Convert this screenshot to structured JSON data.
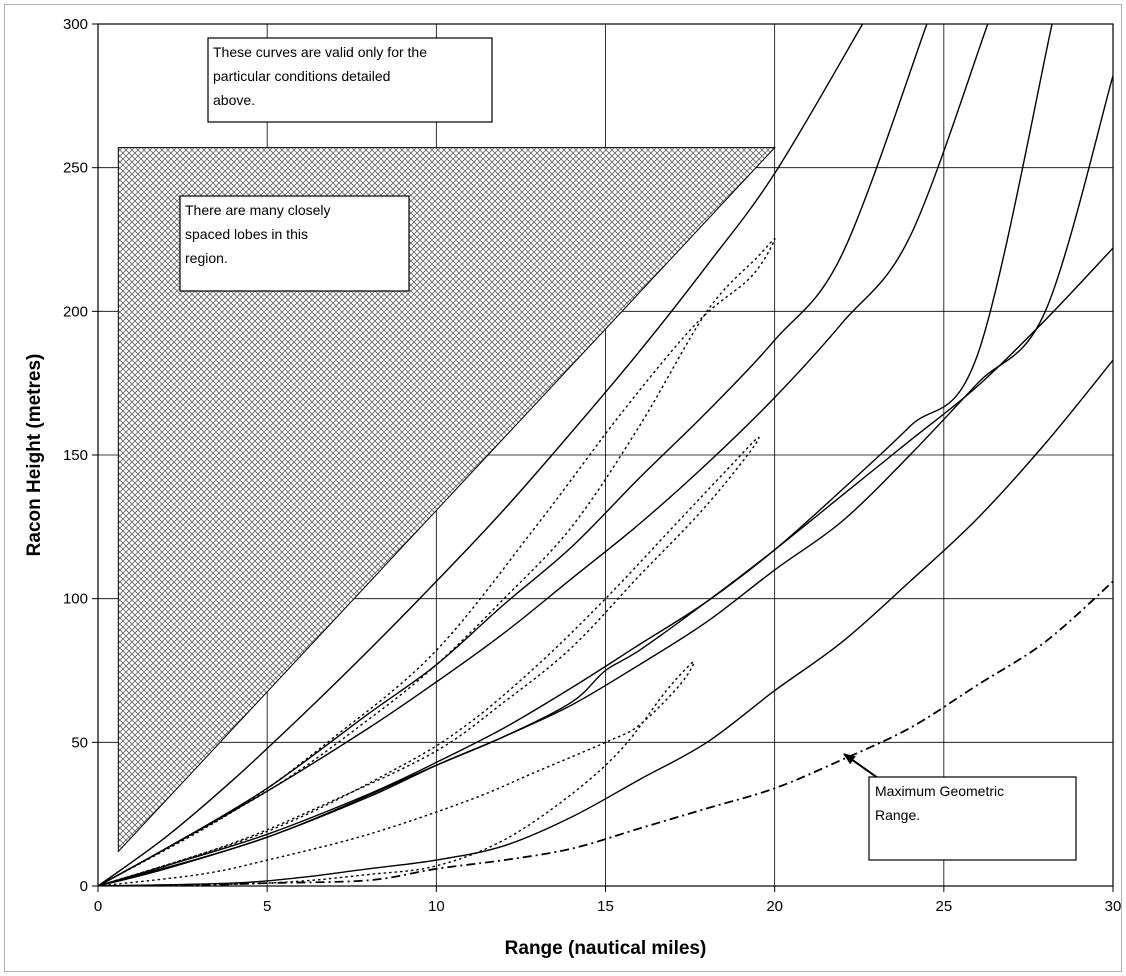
{
  "chart_data": {
    "type": "line",
    "title": "",
    "xlabel": "Range (nautical miles)",
    "ylabel": "Racon Height (metres)",
    "xlim": [
      0,
      30
    ],
    "ylim": [
      0,
      300
    ],
    "xticks": [
      0,
      5,
      10,
      15,
      20,
      25,
      30
    ],
    "yticks": [
      0,
      50,
      100,
      150,
      200,
      250,
      300
    ],
    "grid": true,
    "legend": "none",
    "shaded_region": {
      "pattern": "crosshatch",
      "vertices": [
        [
          0.6,
          12
        ],
        [
          0.6,
          257
        ],
        [
          20,
          257
        ]
      ]
    },
    "series": [
      {
        "style": "solid",
        "x": [
          0,
          2,
          4,
          6,
          8,
          10,
          12,
          14,
          16,
          18,
          20,
          22.6
        ],
        "y": [
          0,
          17,
          37,
          59,
          82,
          106,
          131,
          158,
          186,
          216,
          248,
          300
        ]
      },
      {
        "style": "solid",
        "x": [
          0,
          2,
          5,
          8,
          10,
          12,
          14,
          16,
          18,
          20,
          22,
          24.5
        ],
        "y": [
          0,
          13,
          34,
          60,
          77,
          98,
          118,
          142,
          165,
          190,
          220,
          300
        ]
      },
      {
        "style": "solid",
        "x": [
          0,
          2,
          5,
          8,
          10,
          12,
          14,
          16,
          18,
          20,
          22,
          24,
          26.3
        ],
        "y": [
          0,
          13,
          33,
          55,
          71,
          88,
          107,
          126,
          147,
          170,
          196,
          226,
          300
        ]
      },
      {
        "style": "solid",
        "x": [
          0,
          2,
          5,
          8,
          10,
          12,
          14,
          16,
          18,
          20,
          22,
          24,
          26,
          28.2
        ],
        "y": [
          0,
          7,
          18,
          32,
          43,
          55,
          69,
          84,
          99,
          117,
          138,
          160,
          185,
          300
        ]
      },
      {
        "style": "solid",
        "x": [
          0,
          2,
          5,
          8,
          10,
          12,
          14,
          16,
          18,
          20,
          22,
          24,
          26,
          28,
          30
        ],
        "y": [
          0,
          6,
          17,
          31,
          42,
          52,
          63,
          77,
          92,
          110,
          127,
          150,
          175,
          200,
          282
        ]
      },
      {
        "style": "solid",
        "x": [
          0,
          5,
          10,
          12,
          14,
          15,
          16,
          18,
          20,
          22,
          24,
          26,
          28,
          30
        ],
        "y": [
          0,
          17,
          42,
          52,
          64,
          75,
          82,
          99,
          117,
          136,
          155,
          174,
          197,
          222
        ]
      },
      {
        "style": "solid",
        "x": [
          0,
          4,
          6,
          8,
          10,
          12,
          14,
          16,
          18,
          20,
          22,
          24,
          26,
          28,
          30
        ],
        "y": [
          0,
          1,
          3,
          6,
          9,
          14,
          24,
          37,
          50,
          68,
          85,
          106,
          128,
          154,
          183
        ]
      },
      {
        "style": "dotted",
        "x": [
          0,
          5,
          8,
          10,
          12,
          14,
          16,
          18,
          19.5,
          20,
          19.3,
          17.7,
          15.5,
          13,
          10,
          7,
          4,
          0
        ],
        "y": [
          0,
          33,
          58,
          77,
          100,
          125,
          160,
          200,
          219,
          225,
          212,
          196,
          165,
          126,
          82,
          52,
          26,
          0
        ]
      },
      {
        "style": "dotted",
        "x": [
          0,
          5,
          9,
          11,
          13,
          15,
          17,
          18.6,
          19.5,
          19.2,
          17.8,
          16,
          14,
          12,
          10,
          7,
          4,
          0
        ],
        "y": [
          0,
          19,
          42,
          57,
          77,
          100,
          125,
          145,
          156,
          150,
          130,
          108,
          83,
          64,
          47,
          30,
          15,
          0
        ]
      },
      {
        "style": "dotted",
        "x": [
          0,
          5,
          8,
          10,
          12,
          14,
          15.5,
          16.8,
          17.6,
          17.2,
          16,
          15,
          13,
          11,
          8,
          5,
          3,
          0
        ],
        "y": [
          0,
          1,
          4,
          7,
          16,
          32,
          48,
          68,
          78,
          70,
          56,
          50,
          40,
          30,
          18,
          9,
          4,
          0
        ]
      },
      {
        "style": "dash-dot",
        "x": [
          2.5,
          5,
          8,
          10,
          12,
          14,
          16,
          18,
          20,
          22,
          24,
          26,
          28,
          30
        ],
        "y": [
          0,
          1,
          2,
          6,
          9,
          13,
          20,
          27,
          34,
          44,
          55,
          70,
          85,
          106
        ]
      }
    ],
    "annotations": [
      {
        "lines": [
          "These curves are valid only for the",
          "particular conditions detailed",
          "above."
        ]
      },
      {
        "lines": [
          "There are many closely",
          "spaced lobes in this",
          "region."
        ]
      },
      {
        "lines": [
          "Maximum Geometric",
          "Range."
        ],
        "arrow_to": [
          22.3,
          45
        ]
      }
    ]
  }
}
